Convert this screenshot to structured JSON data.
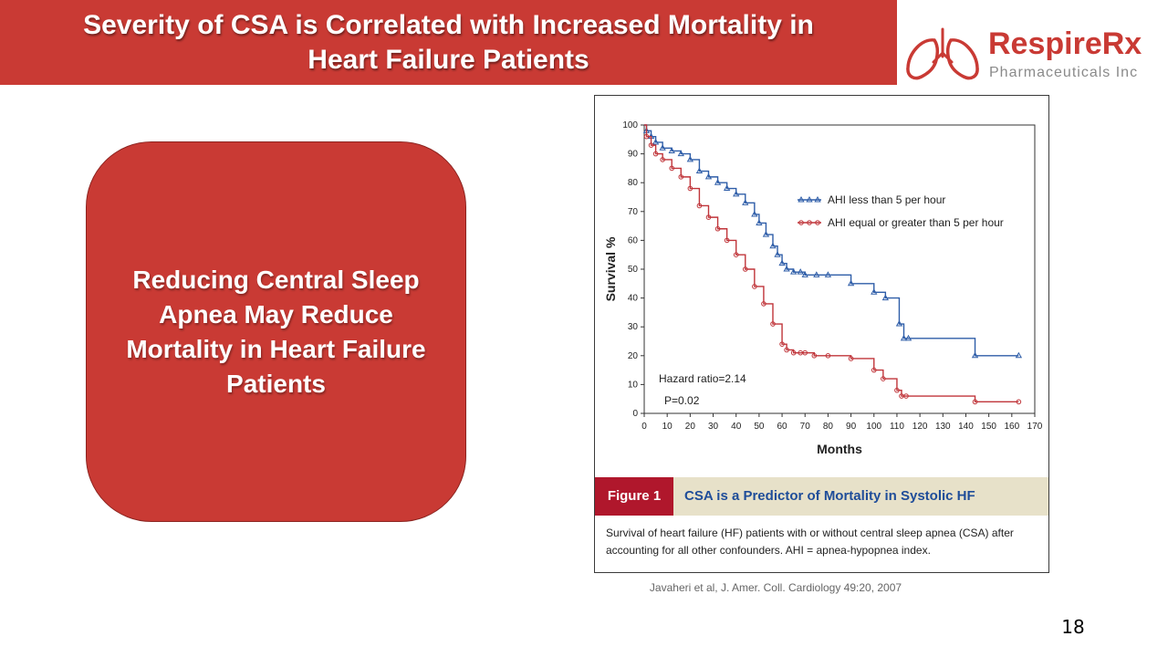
{
  "slide": {
    "title_line1": "Severity of CSA is Correlated with Increased Mortality in",
    "title_line2": "Heart Failure Patients",
    "page_number": "18",
    "citation": "Javaheri et al, J. Amer. Coll. Cardiology 49:20, 2007"
  },
  "logo": {
    "name": "RespireRx",
    "subtitle": "Pharmaceuticals Inc",
    "icon": "lungs-icon",
    "color": "#c93a34"
  },
  "callout": {
    "text": "Reducing Central Sleep Apnea May Reduce Mortality in Heart Failure Patients",
    "color": "#c93a34"
  },
  "figure": {
    "label": "Figure 1",
    "title": "CSA is a Predictor of Mortality in Systolic HF",
    "caption": "Survival of heart failure (HF) patients with or without central sleep apnea (CSA) after accounting for all other confounders. AHI = apnea-hypopnea index."
  },
  "chart_data": {
    "type": "line",
    "step": true,
    "xlabel": "Months",
    "ylabel": "Survival %",
    "xlim": [
      0,
      170
    ],
    "ylim": [
      0,
      100
    ],
    "x_ticks": [
      0,
      10,
      20,
      30,
      40,
      50,
      60,
      70,
      80,
      90,
      100,
      110,
      120,
      130,
      140,
      150,
      160,
      170
    ],
    "x_tick_labels": [
      "0",
      "10",
      "20",
      "30",
      "40",
      "50",
      "60",
      "70",
      "80",
      "90",
      "100",
      "110",
      "120",
      "130",
      "140",
      "150",
      "160",
      "170"
    ],
    "y_ticks": [
      0,
      10,
      20,
      30,
      40,
      50,
      60,
      70,
      80,
      90,
      100
    ],
    "y_tick_labels": [
      "0",
      "10",
      "20",
      "30",
      "40",
      "50",
      "60",
      "70",
      "80",
      "90",
      "100"
    ],
    "legend_position": "top-right",
    "annotations": [
      "Hazard ratio=2.14",
      "P=0.02"
    ],
    "series": [
      {
        "name": "AHI  less than 5 per hour",
        "color": "#2e5da8",
        "marker": "triangle",
        "x": [
          0,
          1,
          3,
          5,
          8,
          12,
          16,
          20,
          24,
          28,
          32,
          36,
          40,
          44,
          48,
          50,
          53,
          56,
          58,
          60,
          62,
          65,
          68,
          70,
          75,
          80,
          90,
          100,
          105,
          111,
          113,
          115,
          144,
          163
        ],
        "y": [
          100,
          98,
          96,
          94,
          92,
          91,
          90,
          88,
          84,
          82,
          80,
          78,
          76,
          73,
          69,
          66,
          62,
          58,
          55,
          52,
          50,
          49,
          49,
          48,
          48,
          48,
          45,
          42,
          40,
          31,
          26,
          26,
          20,
          20
        ]
      },
      {
        "name": "AHI equal or greater than 5 per hour",
        "color": "#c0353a",
        "marker": "circle",
        "x": [
          0,
          1,
          3,
          5,
          8,
          12,
          16,
          20,
          24,
          28,
          32,
          36,
          40,
          44,
          48,
          52,
          56,
          60,
          62,
          65,
          68,
          70,
          74,
          80,
          90,
          100,
          104,
          110,
          112,
          114,
          144,
          163
        ],
        "y": [
          100,
          96,
          93,
          90,
          88,
          85,
          82,
          78,
          72,
          68,
          64,
          60,
          55,
          50,
          44,
          38,
          31,
          24,
          22,
          21,
          21,
          21,
          20,
          20,
          19,
          15,
          12,
          8,
          6,
          6,
          4,
          4
        ]
      }
    ]
  }
}
